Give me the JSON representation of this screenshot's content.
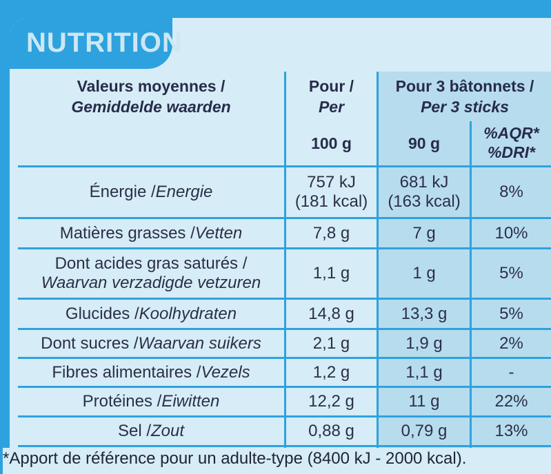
{
  "title": "NUTRITION",
  "header": {
    "col1_line1": "Valeurs moyennes /",
    "col1_line2": "Gemiddelde waarden",
    "col2_line1": "Pour /",
    "col2_line2": "Per",
    "col3_line1": "Pour 3 bâtonnets /",
    "col3_line2": "Per 3 sticks",
    "col2_amount": "100 g",
    "col3_amount": "90 g",
    "col4_line1": "%AQR*",
    "col4_line2": "%DRI*"
  },
  "rows": [
    {
      "fr": "Énergie / ",
      "nl": "Energie",
      "per100_1": "757 kJ",
      "per100_2": "(181 kcal)",
      "per90_1": "681 kJ",
      "per90_2": "(163 kcal)",
      "pct": "8%"
    },
    {
      "fr": "Matières grasses / ",
      "nl": "Vetten",
      "per100": "7,8 g",
      "per90": "7 g",
      "pct": "10%"
    },
    {
      "fr": "Dont acides gras saturés /",
      "nl": "Waarvan verzadigde vetzuren",
      "per100": "1,1 g",
      "per90": "1 g",
      "pct": "5%"
    },
    {
      "fr": "Glucides / ",
      "nl": "Koolhydraten",
      "per100": "14,8 g",
      "per90": "13,3 g",
      "pct": "5%"
    },
    {
      "fr": "Dont sucres / ",
      "nl": "Waarvan suikers",
      "per100": "2,1 g",
      "per90": "1,9 g",
      "pct": "2%"
    },
    {
      "fr": "Fibres alimentaires / ",
      "nl": "Vezels",
      "per100": "1,2 g",
      "per90": "1,1 g",
      "pct": "-"
    },
    {
      "fr": "Protéines / ",
      "nl": "Eiwitten",
      "per100": "12,2 g",
      "per90": "11 g",
      "pct": "22%"
    },
    {
      "fr": "Sel / ",
      "nl": "Zout",
      "per100": "0,88 g",
      "per90": "0,79 g",
      "pct": "13%"
    }
  ],
  "footnote": "*Apport de référence pour un adulte-type (8400 kJ - 2000 kcal).",
  "colors": {
    "border_blue": "#2ea2de",
    "panel": "#d6ecf6",
    "shade": "#b7dcee",
    "text": "#2a2f4a"
  }
}
